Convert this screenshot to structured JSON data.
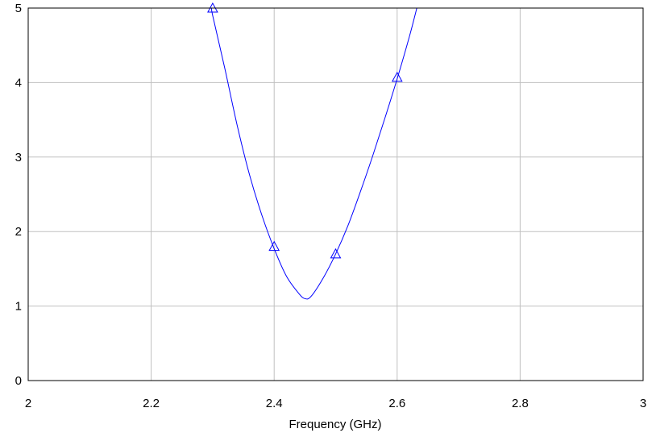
{
  "chart_data": {
    "type": "line",
    "title": "",
    "xlabel": "Frequency (GHz)",
    "ylabel": "",
    "xlim": [
      2,
      3
    ],
    "ylim": [
      0,
      5
    ],
    "grid": true,
    "x_ticks": [
      "2",
      "2.2",
      "2.4",
      "2.6",
      "2.8",
      "3"
    ],
    "y_ticks": [
      "0",
      "1",
      "2",
      "3",
      "4",
      "5"
    ],
    "line_color": "#0000ff",
    "grid_color": "#c0c0c0",
    "marker": "triangle",
    "series": [
      {
        "x": [
          2.2984,
          2.3,
          2.32,
          2.34,
          2.36,
          2.38,
          2.4,
          2.42,
          2.44,
          2.45,
          2.46,
          2.48,
          2.5,
          2.52,
          2.54,
          2.56,
          2.58,
          2.6,
          2.62,
          2.632
        ],
        "values": [
          5.0,
          4.9,
          4.18,
          3.42,
          2.76,
          2.22,
          1.77,
          1.4,
          1.17,
          1.1,
          1.13,
          1.38,
          1.7,
          2.08,
          2.53,
          3.01,
          3.52,
          4.05,
          4.62,
          5.0
        ]
      }
    ],
    "markers": {
      "x": [
        2.3,
        2.4,
        2.5,
        2.6
      ],
      "values": [
        5.0,
        1.8,
        1.7,
        4.07
      ]
    }
  }
}
